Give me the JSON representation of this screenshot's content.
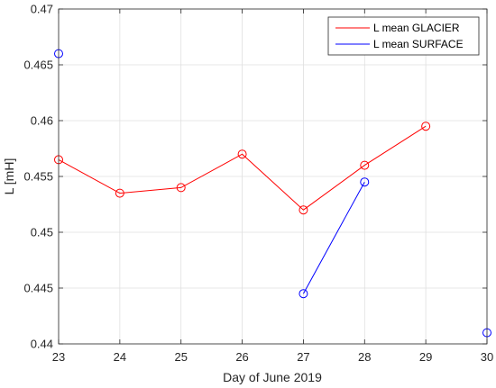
{
  "chart_data": {
    "type": "line",
    "xlabel": "Day of June 2019",
    "ylabel": "L [mH]",
    "xlim": [
      23,
      30
    ],
    "ylim": [
      0.44,
      0.47
    ],
    "xticks": [
      "23",
      "24",
      "25",
      "26",
      "27",
      "28",
      "29",
      "30"
    ],
    "yticks": [
      "0.44",
      "0.445",
      "0.45",
      "0.455",
      "0.46",
      "0.465",
      "0.47"
    ],
    "grid": true,
    "legend_position": "top-right",
    "series": [
      {
        "name": "L mean GLACIER",
        "color": "#ff0000",
        "marker": "circle",
        "points": [
          {
            "x": 23,
            "y": 0.4565,
            "connected": true
          },
          {
            "x": 24,
            "y": 0.4535,
            "connected": true
          },
          {
            "x": 25,
            "y": 0.454,
            "connected": true
          },
          {
            "x": 26,
            "y": 0.457,
            "connected": true
          },
          {
            "x": 27,
            "y": 0.452,
            "connected": true
          },
          {
            "x": 28,
            "y": 0.456,
            "connected": true
          },
          {
            "x": 29,
            "y": 0.4595,
            "connected": true
          }
        ]
      },
      {
        "name": "L mean SURFACE",
        "color": "#0000ff",
        "marker": "circle",
        "points": [
          {
            "x": 23,
            "y": 0.466,
            "connected": false
          },
          {
            "x": 27,
            "y": 0.4445,
            "connected": true
          },
          {
            "x": 28,
            "y": 0.4545,
            "connected": true
          },
          {
            "x": 30,
            "y": 0.441,
            "connected": false
          }
        ]
      }
    ]
  }
}
